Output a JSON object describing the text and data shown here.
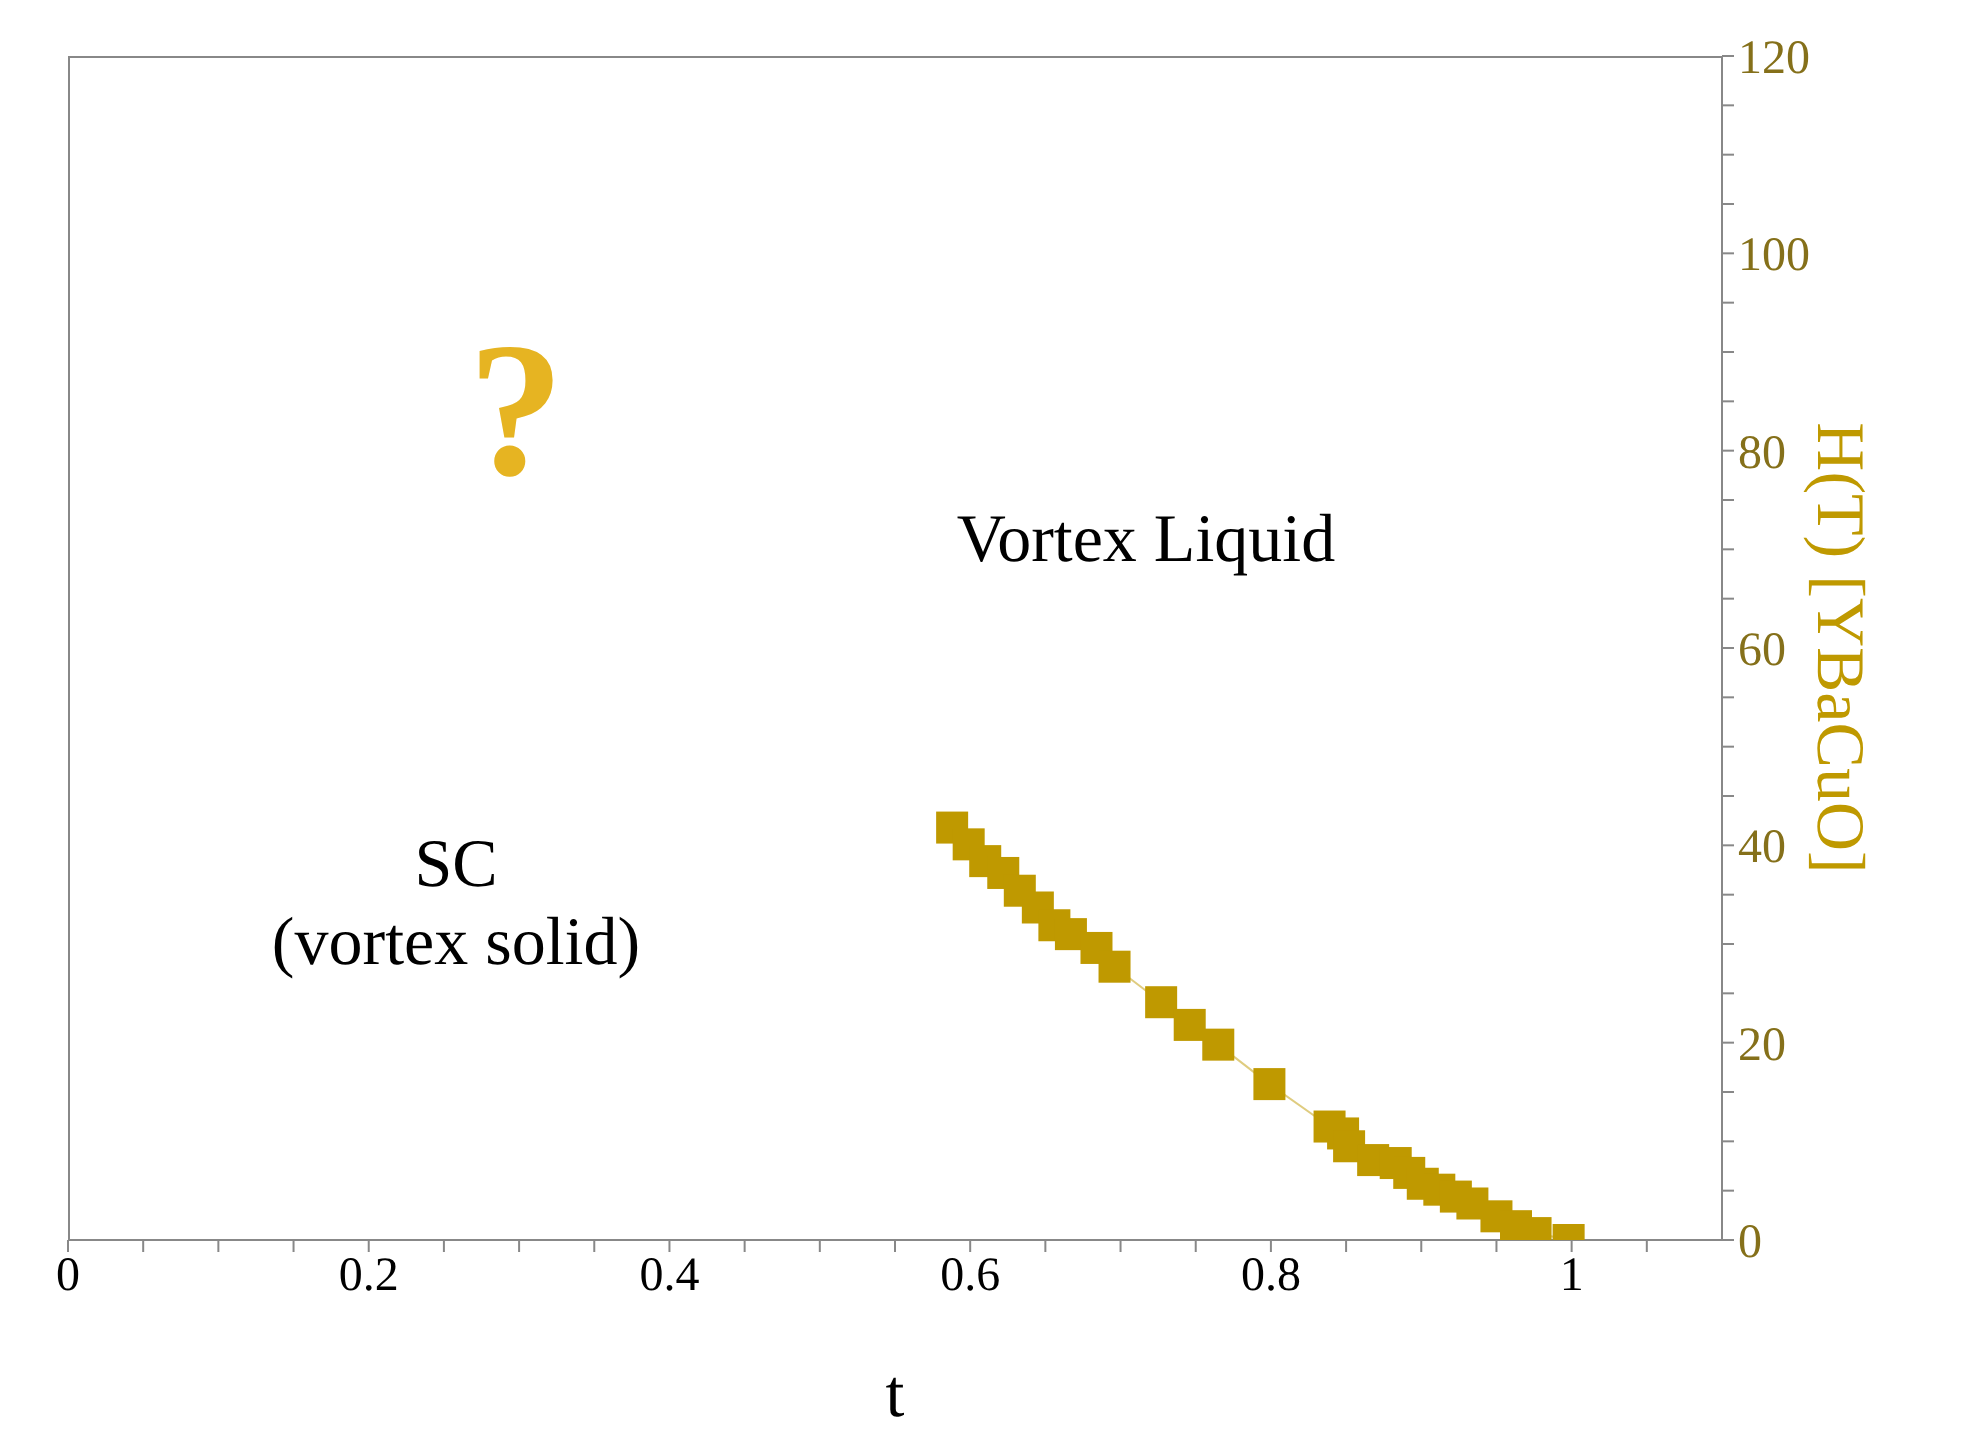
{
  "chart_data": {
    "type": "line",
    "xlabel": "t",
    "y2label": "H(T) [YBaCuO]",
    "x": [
      0.588,
      0.599,
      0.61,
      0.622,
      0.633,
      0.645,
      0.656,
      0.667,
      0.684,
      0.696,
      0.727,
      0.746,
      0.765,
      0.799,
      0.839,
      0.848,
      0.852,
      0.868,
      0.883,
      0.892,
      0.901,
      0.912,
      0.923,
      0.934,
      0.95,
      0.963,
      0.976,
      0.998
    ],
    "series": [
      {
        "color": "#bf9900",
        "axis": "y2",
        "values": [
          41.8,
          40.1,
          38.4,
          37.2,
          35.4,
          33.7,
          31.9,
          31.0,
          29.6,
          27.7,
          24.1,
          21.8,
          19.8,
          15.8,
          11.5,
          10.8,
          9.5,
          8.1,
          7.8,
          6.8,
          5.7,
          5.1,
          4.4,
          3.7,
          2.4,
          1.4,
          0.7,
          0
        ]
      }
    ],
    "marker": "square",
    "xlim": [
      0,
      1.1
    ],
    "xticks": [
      0,
      {
        "value": 0.05,
        "label": null
      },
      0.2,
      {
        "value": 0.1,
        "label": null
      },
      {
        "value": 0.15,
        "label": null
      },
      {
        "value": 0.25,
        "label": null
      },
      {
        "value": 0.3,
        "label": null
      },
      {
        "value": 0.35,
        "label": null
      },
      0.4,
      {
        "value": 0.45,
        "label": null
      },
      {
        "value": 0.5,
        "label": null
      },
      {
        "value": 0.55,
        "label": null
      },
      0.6,
      {
        "value": 0.65,
        "label": null
      },
      {
        "value": 0.7,
        "label": null
      },
      {
        "value": 0.75,
        "label": null
      },
      0.8,
      {
        "value": 0.85,
        "label": null
      },
      {
        "value": 0.9,
        "label": null
      },
      {
        "value": 0.95,
        "label": null
      },
      1,
      {
        "value": 1.05,
        "label": null
      }
    ],
    "y2lim": [
      0,
      120
    ],
    "y2ticks": [
      0,
      {
        "value": 5,
        "label": null
      },
      {
        "value": 10,
        "label": null
      },
      {
        "value": 15,
        "label": null
      },
      20,
      {
        "value": 25,
        "label": null
      },
      {
        "value": 30,
        "label": null
      },
      {
        "value": 35,
        "label": null
      },
      40,
      {
        "value": 45,
        "label": null
      },
      {
        "value": 50,
        "label": null
      },
      {
        "value": 55,
        "label": null
      },
      60,
      {
        "value": 65,
        "label": null
      },
      {
        "value": 70,
        "label": null
      },
      {
        "value": 75,
        "label": null
      },
      80,
      {
        "value": 85,
        "label": null
      },
      {
        "value": 90,
        "label": null
      },
      {
        "value": 95,
        "label": null
      },
      100,
      {
        "value": 105,
        "label": null
      },
      {
        "value": 110,
        "label": null
      },
      {
        "value": 115,
        "label": null
      },
      120
    ],
    "annotations": [
      "?",
      "Vortex Liquid",
      "SC\n(vortex solid)"
    ]
  }
}
